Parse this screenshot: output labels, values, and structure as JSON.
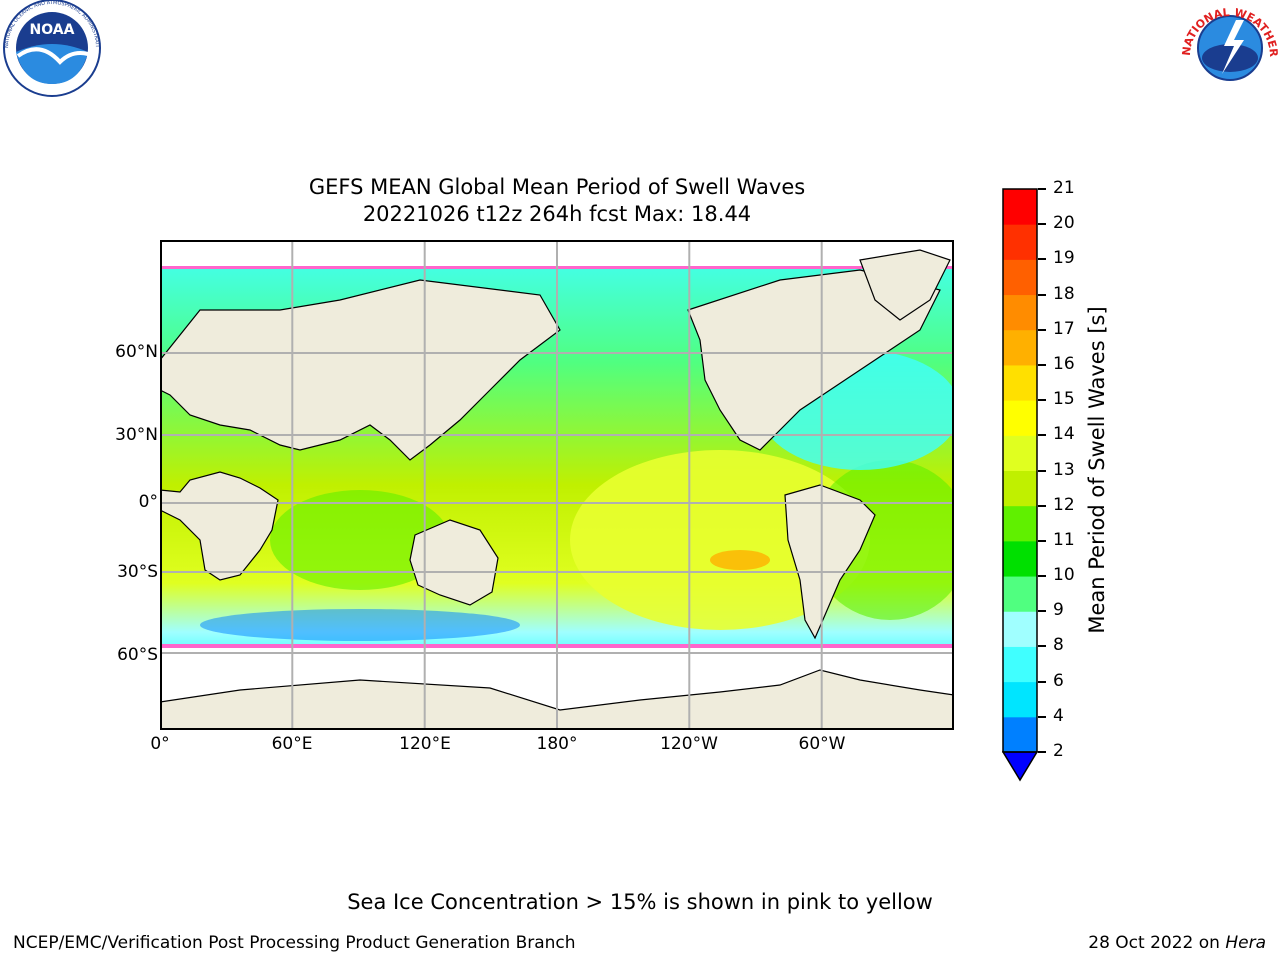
{
  "header": {
    "title_line1": "GEFS MEAN Global Mean Period of Swell Waves",
    "title_line2": "20221026 t12z 264h fcst   Max: 18.44"
  },
  "logos": {
    "left": "noaa-logo",
    "right": "national-weather-service-logo",
    "noaa_text": "NOAA",
    "noaa_ring_text": "NATIONAL OCEANIC AND ATMOSPHERIC ADMINISTRATION · U.S. DEPARTMENT OF COMMERCE",
    "nws_ring_text": "NATIONAL WEATHER SERVICE"
  },
  "map": {
    "projection": "cylindrical",
    "lon_range": [
      0,
      360
    ],
    "lat_range": [
      -78,
      90
    ],
    "gridlines": true,
    "lat_ticks": [
      {
        "lat": 60,
        "label": "60°N"
      },
      {
        "lat": 30,
        "label": "30°N"
      },
      {
        "lat": 0,
        "label": "0°"
      },
      {
        "lat": -30,
        "label": "30°S"
      },
      {
        "lat": -60,
        "label": "60°S"
      }
    ],
    "lon_ticks": [
      {
        "lon": 0,
        "label": "0°"
      },
      {
        "lon": 60,
        "label": "60°E"
      },
      {
        "lon": 120,
        "label": "120°E"
      },
      {
        "lon": 180,
        "label": "180°"
      },
      {
        "lon": 240,
        "label": "120°W"
      },
      {
        "lon": 300,
        "label": "60°W"
      }
    ],
    "colors": {
      "land": "#efecdc",
      "sea_ice_area": "#ffffff",
      "coastline": "#000000",
      "grid": "#b0b0b0",
      "sea_ice_edge": "#ff66cc"
    }
  },
  "colorbar": {
    "label": "Mean Period of Swell Waves [s]",
    "extend": "min",
    "ticks": [
      "2",
      "4",
      "6",
      "8",
      "9",
      "10",
      "11",
      "12",
      "13",
      "14",
      "15",
      "16",
      "17",
      "18",
      "19",
      "20",
      "21"
    ],
    "under_color": "#0000ff",
    "colors": [
      "#0080ff",
      "#00e5ff",
      "#40ffff",
      "#a0ffff",
      "#50ff80",
      "#00e000",
      "#60f000",
      "#c0f000",
      "#e0ff20",
      "#ffff00",
      "#ffe000",
      "#ffb000",
      "#ff8c00",
      "#ff6000",
      "#ff3000",
      "#ff0000"
    ]
  },
  "footer": {
    "ice_note": "Sea Ice Concentration > 15% is shown in pink to yellow",
    "left": "NCEP/EMC/Verification Post Processing Product Generation Branch",
    "right_date": "28 Oct 2022 on ",
    "right_host": "Hera"
  }
}
